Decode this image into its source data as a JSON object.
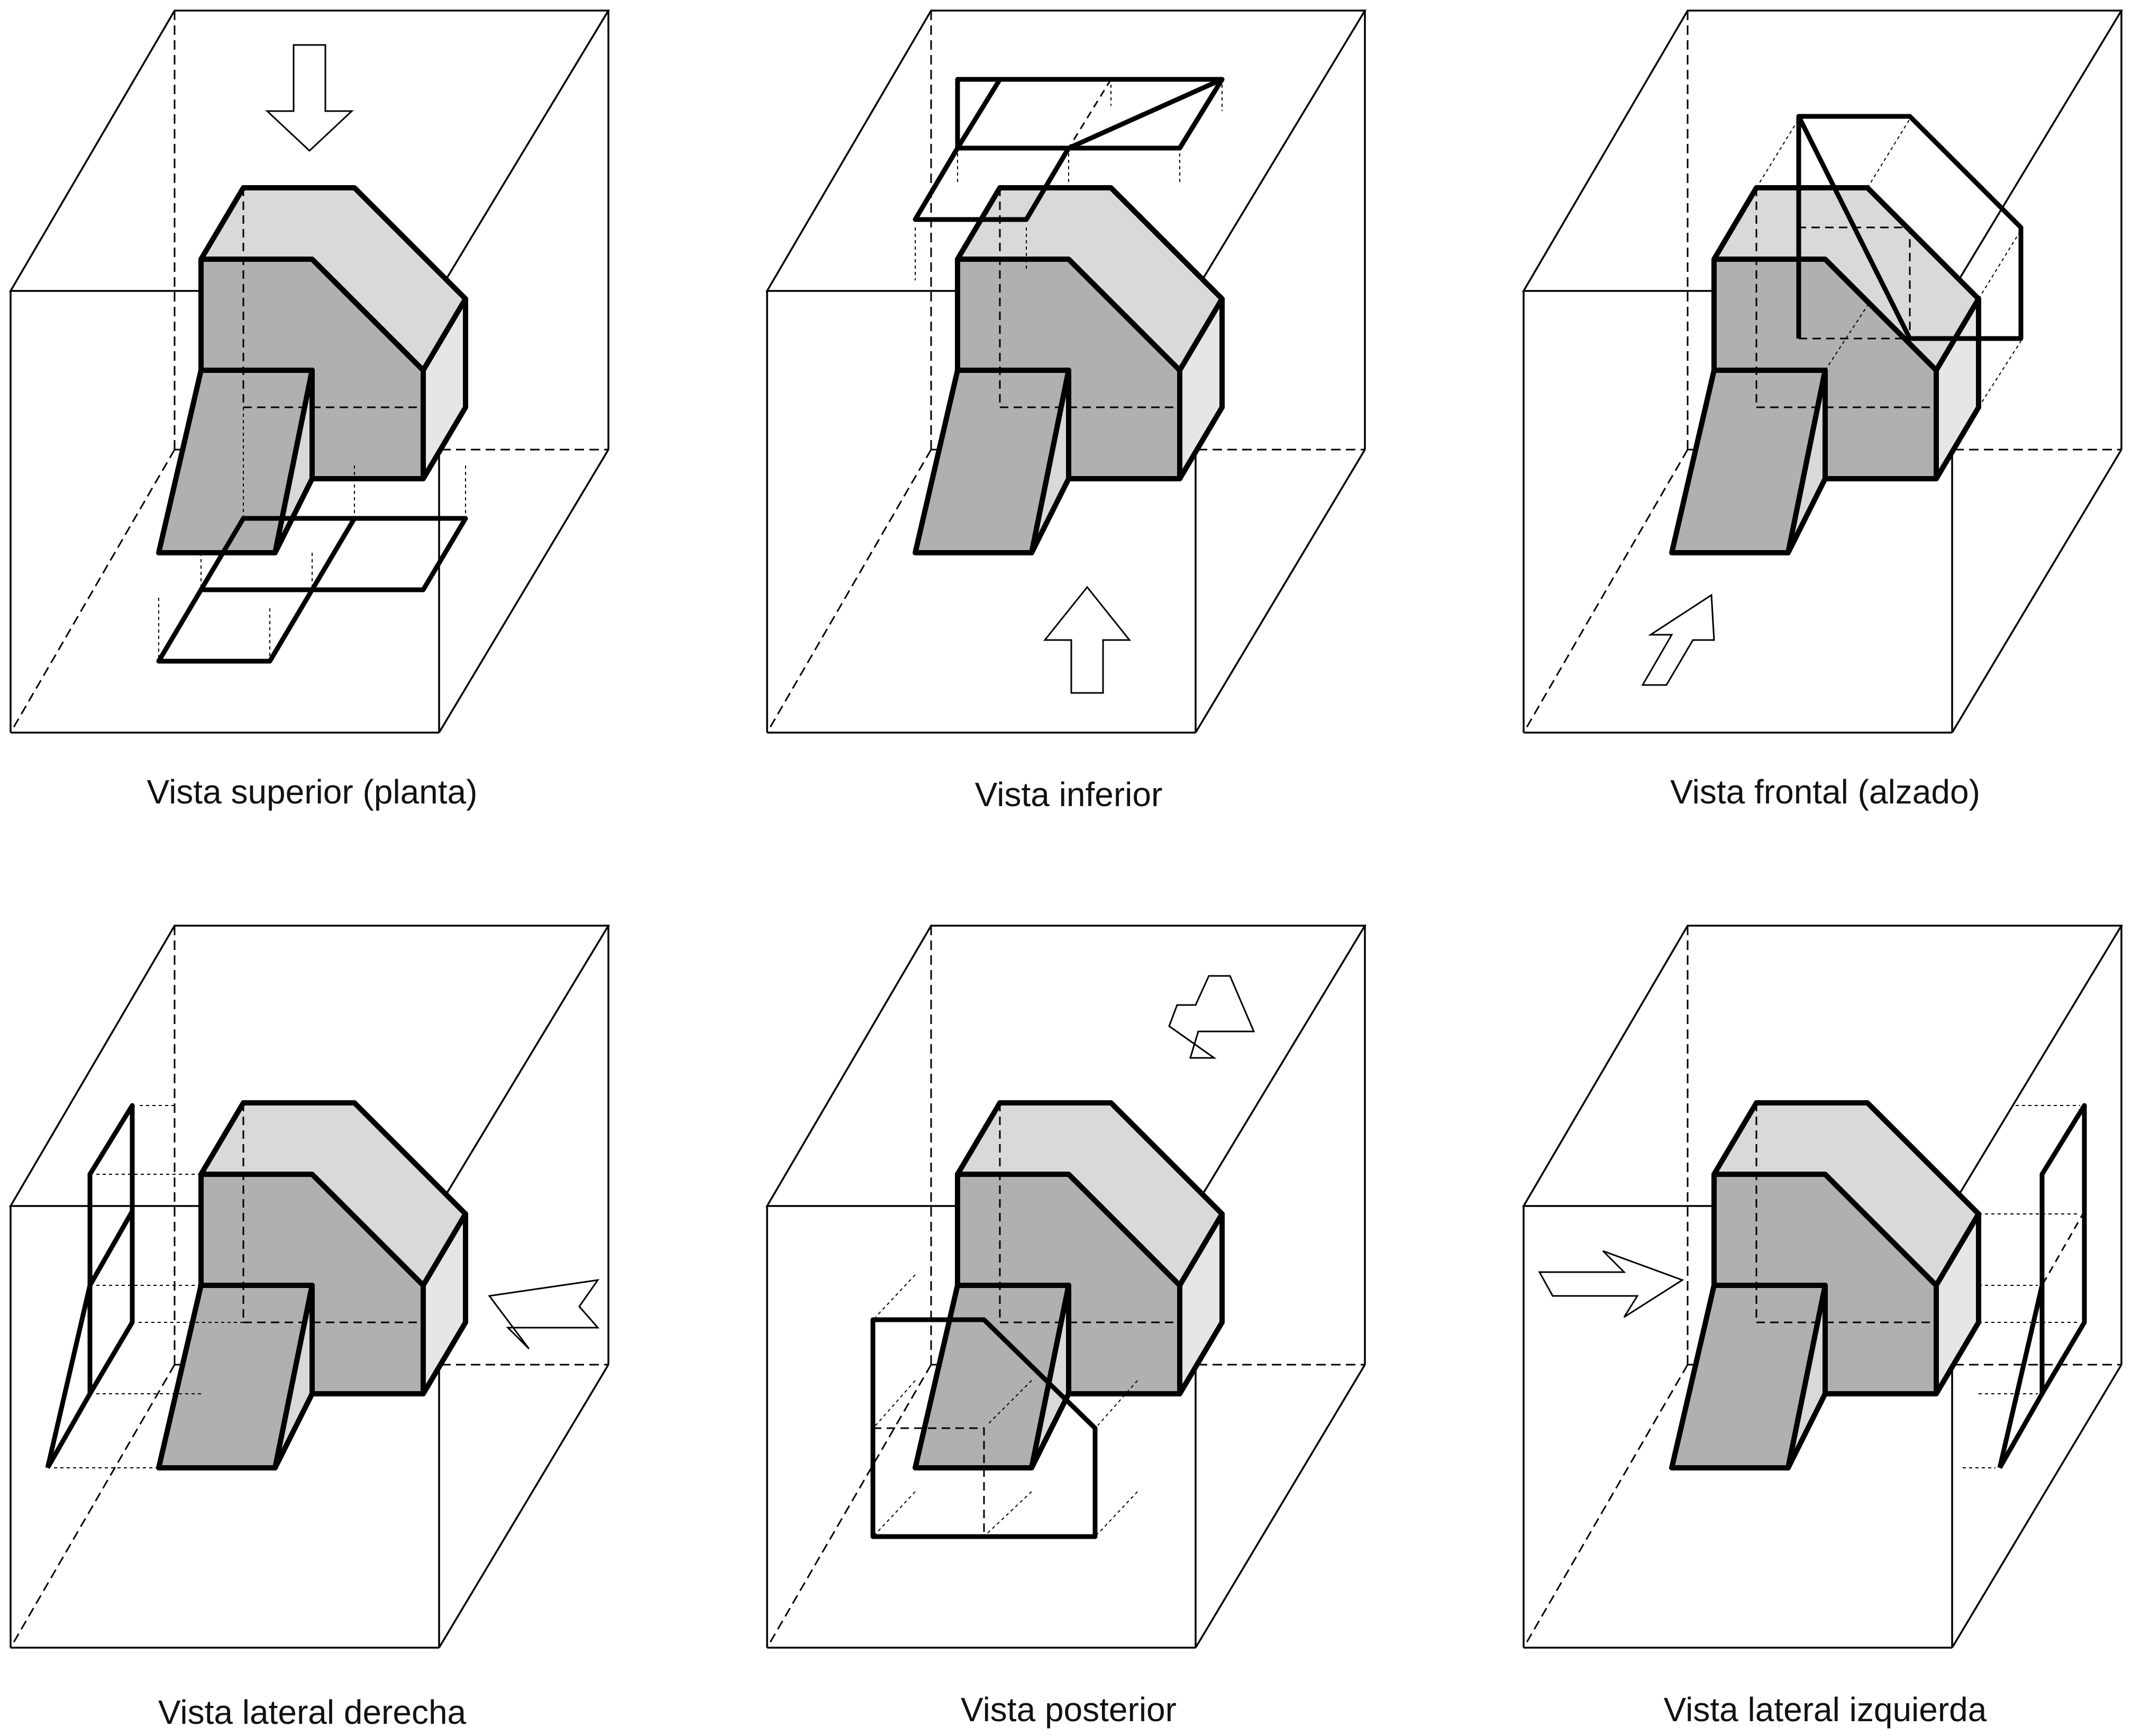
{
  "views": [
    {
      "id": "top",
      "caption": "Vista superior (planta)",
      "arrow_icon": "arrow-down-icon",
      "projection": "top"
    },
    {
      "id": "bottom",
      "caption": "Vista inferior",
      "arrow_icon": "arrow-up-icon",
      "projection": "bottom"
    },
    {
      "id": "front",
      "caption": "Vista frontal (alzado)",
      "arrow_icon": "arrow-diagonal-up-right-icon",
      "projection": "front"
    },
    {
      "id": "right",
      "caption": "Vista lateral derecha",
      "arrow_icon": "arrow-left-icon",
      "projection": "right"
    },
    {
      "id": "back",
      "caption": "Vista posterior",
      "arrow_icon": "arrow-diagonal-down-left-icon",
      "projection": "back"
    },
    {
      "id": "left",
      "caption": "Vista lateral izquierda",
      "arrow_icon": "arrow-right-icon",
      "projection": "left"
    }
  ],
  "colors": {
    "dark_face": "#b0b0b0",
    "light_face": "#d9d9d9",
    "side_face": "#e6e6e6",
    "line": "#000000"
  }
}
